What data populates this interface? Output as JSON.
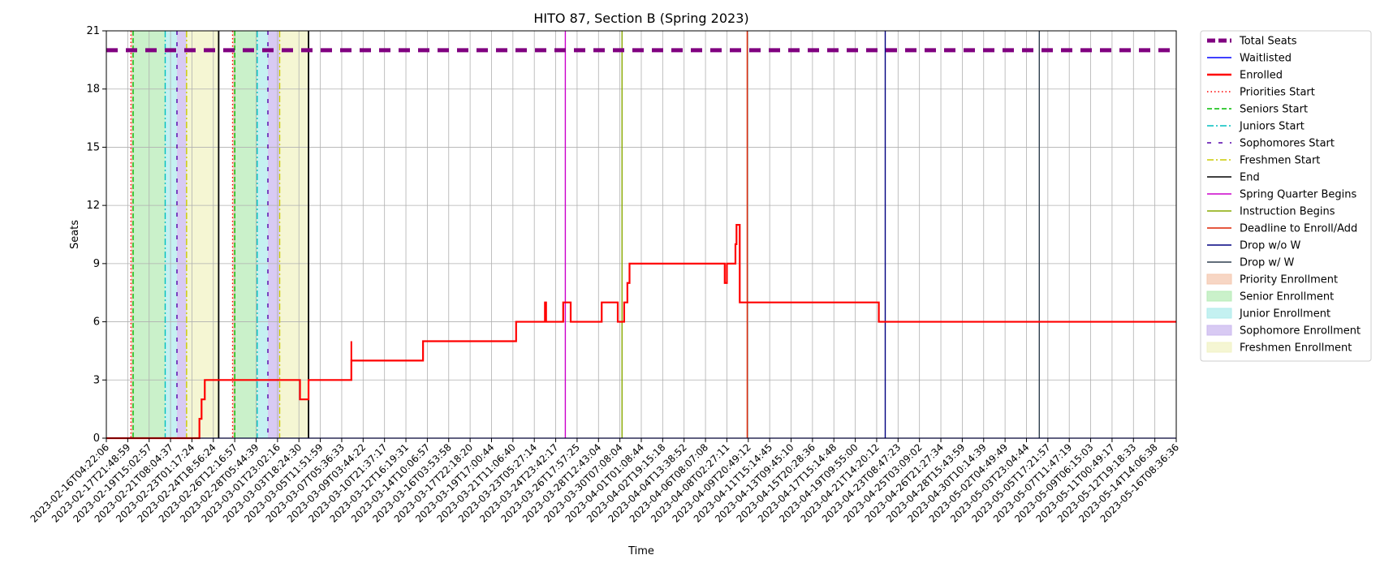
{
  "chart_data": {
    "type": "line",
    "title": "HITO 87, Section B (Spring 2023)",
    "xlabel": "Time",
    "ylabel": "Seats",
    "ylim": [
      0,
      21
    ],
    "yticks": [
      0,
      3,
      6,
      9,
      12,
      15,
      18,
      21
    ],
    "grid": true,
    "legend_position": "outside-right",
    "x_start": "2023-02-16T04:22:06",
    "x_end": "2023-05-16T08:36:36",
    "xtick_labels": [
      "2023-02-16T04:22:06",
      "2023-02-17T21:48:59",
      "2023-02-19T15:02:57",
      "2023-02-21T08:04:37",
      "2023-02-23T01:17:24",
      "2023-02-24T18:56:24",
      "2023-02-26T12:16:57",
      "2023-02-28T05:44:39",
      "2023-03-01T23:02:16",
      "2023-03-03T18:24:30",
      "2023-03-05T11:51:59",
      "2023-03-07T05:36:33",
      "2023-03-09T03:44:22",
      "2023-03-10T21:37:17",
      "2023-03-12T16:19:31",
      "2023-03-14T10:06:57",
      "2023-03-16T03:53:58",
      "2023-03-17T22:18:20",
      "2023-03-19T17:00:44",
      "2023-03-21T11:06:40",
      "2023-03-23T05:27:14",
      "2023-03-24T23:42:17",
      "2023-03-26T17:57:25",
      "2023-03-28T12:43:04",
      "2023-03-30T07:08:04",
      "2023-04-01T01:08:44",
      "2023-04-02T19:15:18",
      "2023-04-04T13:38:52",
      "2023-04-06T08:07:08",
      "2023-04-08T02:27:11",
      "2023-04-09T20:49:12",
      "2023-04-11T15:14:45",
      "2023-04-13T09:45:10",
      "2023-04-15T20:28:36",
      "2023-04-17T15:14:48",
      "2023-04-19T09:55:00",
      "2023-04-21T14:20:12",
      "2023-04-23T08:47:23",
      "2023-04-25T03:09:02",
      "2023-04-26T21:27:34",
      "2023-04-28T15:43:59",
      "2023-04-30T10:14:39",
      "2023-05-02T04:49:49",
      "2023-05-03T23:04:44",
      "2023-05-05T17:21:57",
      "2023-05-07T11:47:19",
      "2023-05-09T06:15:03",
      "2023-05-11T00:49:17",
      "2023-05-12T19:18:33",
      "2023-05-14T14:06:38",
      "2023-05-16T08:36:36"
    ],
    "series": [
      {
        "name": "Total Seats",
        "color": "#800080",
        "style": "thick-dashed",
        "points": [
          [
            0,
            20
          ],
          [
            50,
            20
          ]
        ]
      },
      {
        "name": "Waitlisted",
        "color": "#0000ff",
        "style": "solid",
        "points": [
          [
            0,
            0
          ],
          [
            50,
            0
          ]
        ]
      },
      {
        "name": "Enrolled",
        "color": "#ff0000",
        "style": "solid",
        "points": [
          [
            0,
            0
          ],
          [
            4.35,
            0
          ],
          [
            4.35,
            1
          ],
          [
            4.45,
            1
          ],
          [
            4.45,
            2
          ],
          [
            4.6,
            2
          ],
          [
            4.6,
            3
          ],
          [
            9.05,
            3
          ],
          [
            9.05,
            2
          ],
          [
            9.45,
            2
          ],
          [
            9.45,
            3
          ],
          [
            11.45,
            3
          ],
          [
            11.45,
            4
          ],
          [
            14.8,
            4
          ],
          [
            14.8,
            5
          ],
          [
            19.15,
            5
          ],
          [
            19.15,
            6
          ],
          [
            20.5,
            6
          ],
          [
            20.5,
            7
          ],
          [
            20.55,
            7
          ],
          [
            20.55,
            6
          ],
          [
            21.35,
            6
          ],
          [
            21.35,
            7
          ],
          [
            21.7,
            7
          ],
          [
            21.7,
            6
          ],
          [
            23.15,
            6
          ],
          [
            23.15,
            7
          ],
          [
            23.9,
            7
          ],
          [
            23.9,
            6
          ],
          [
            24.2,
            6
          ],
          [
            24.2,
            7
          ],
          [
            24.35,
            7
          ],
          [
            24.35,
            8
          ],
          [
            24.45,
            8
          ],
          [
            24.45,
            9
          ],
          [
            28.9,
            9
          ],
          [
            28.9,
            8
          ],
          [
            29.0,
            8
          ],
          [
            29.0,
            9
          ],
          [
            29.4,
            9
          ],
          [
            29.4,
            10
          ],
          [
            29.45,
            10
          ],
          [
            29.45,
            11
          ],
          [
            29.6,
            11
          ],
          [
            29.6,
            7
          ],
          [
            36.1,
            7
          ],
          [
            36.1,
            6
          ],
          [
            50,
            6
          ]
        ]
      },
      {
        "name": "Enrolled spikes",
        "color": "#ff0000",
        "style": "spike",
        "points": [
          [
            11.45,
            5
          ],
          [
            20.5,
            7
          ]
        ]
      }
    ],
    "events": [
      {
        "name": "Priorities Start",
        "color": "#ff0000",
        "style": "dotted",
        "x": [
          1.15,
          5.9
        ]
      },
      {
        "name": "Seniors Start",
        "color": "#00bb00",
        "style": "dashed",
        "x": [
          1.25,
          6.0
        ]
      },
      {
        "name": "Juniors Start",
        "color": "#00bfbf",
        "style": "dashdot",
        "x": [
          2.75,
          7.05
        ]
      },
      {
        "name": "Sophomores Start",
        "color": "#5500aa",
        "style": "loosedash",
        "x": [
          3.3,
          7.55
        ]
      },
      {
        "name": "Freshmen Start",
        "color": "#cccc00",
        "style": "dashdot",
        "x": [
          3.75,
          8.1
        ]
      },
      {
        "name": "End",
        "color": "#000000",
        "style": "solid",
        "x": [
          5.25,
          9.45
        ]
      },
      {
        "name": "Spring Quarter Begins",
        "color": "#cc00cc",
        "style": "solid",
        "x": [
          21.45
        ]
      },
      {
        "name": "Instruction Begins",
        "color": "#88aa00",
        "style": "solid",
        "x": [
          24.1
        ]
      },
      {
        "name": "Deadline to Enroll/Add",
        "color": "#dd2200",
        "style": "solid",
        "x": [
          29.95
        ]
      },
      {
        "name": "Drop w/o W",
        "color": "#000080",
        "style": "solid",
        "x": [
          36.4
        ]
      },
      {
        "name": "Drop w/ W",
        "color": "#2f3f4f",
        "style": "solid",
        "x": [
          43.6
        ]
      }
    ],
    "regions": [
      {
        "name": "Priority Enrollment",
        "color": "#f4c8b0",
        "spans": [
          [
            1.15,
            1.25
          ],
          [
            5.9,
            6.0
          ]
        ]
      },
      {
        "name": "Senior Enrollment",
        "color": "#b8ecb8",
        "spans": [
          [
            1.25,
            2.75
          ],
          [
            6.0,
            7.05
          ]
        ]
      },
      {
        "name": "Junior Enrollment",
        "color": "#b0ecec",
        "spans": [
          [
            2.75,
            3.3
          ],
          [
            7.05,
            7.55
          ]
        ]
      },
      {
        "name": "Sophomore Enrollment",
        "color": "#cbb8ef",
        "spans": [
          [
            3.3,
            3.75
          ],
          [
            7.55,
            8.1
          ]
        ]
      },
      {
        "name": "Freshmen Enrollment",
        "color": "#f1f3c4",
        "spans": [
          [
            3.75,
            5.25
          ],
          [
            8.1,
            9.45
          ]
        ]
      }
    ],
    "legend": [
      {
        "label": "Total Seats",
        "kind": "thick-dashed",
        "color": "#800080"
      },
      {
        "label": "Waitlisted",
        "kind": "solid",
        "color": "#0000ff"
      },
      {
        "label": "Enrolled",
        "kind": "solid-bold",
        "color": "#ff0000"
      },
      {
        "label": "Priorities Start",
        "kind": "dotted",
        "color": "#ff0000"
      },
      {
        "label": "Seniors Start",
        "kind": "dashed",
        "color": "#00bb00"
      },
      {
        "label": "Juniors Start",
        "kind": "dashdot",
        "color": "#00bfbf"
      },
      {
        "label": "Sophomores Start",
        "kind": "loosedash",
        "color": "#5500aa"
      },
      {
        "label": "Freshmen Start",
        "kind": "dashdot",
        "color": "#cccc00"
      },
      {
        "label": "End",
        "kind": "solid",
        "color": "#000000"
      },
      {
        "label": "Spring Quarter Begins",
        "kind": "solid",
        "color": "#cc00cc"
      },
      {
        "label": "Instruction Begins",
        "kind": "solid",
        "color": "#88aa00"
      },
      {
        "label": "Deadline to Enroll/Add",
        "kind": "solid",
        "color": "#dd2200"
      },
      {
        "label": "Drop w/o W",
        "kind": "solid",
        "color": "#000080"
      },
      {
        "label": "Drop w/ W",
        "kind": "solid",
        "color": "#2f3f4f"
      },
      {
        "label": "Priority Enrollment",
        "kind": "patch",
        "color": "#f4c8b0"
      },
      {
        "label": "Senior Enrollment",
        "kind": "patch",
        "color": "#b8ecb8"
      },
      {
        "label": "Junior Enrollment",
        "kind": "patch",
        "color": "#b0ecec"
      },
      {
        "label": "Sophomore Enrollment",
        "kind": "patch",
        "color": "#cbb8ef"
      },
      {
        "label": "Freshmen Enrollment",
        "kind": "patch",
        "color": "#f1f3c4"
      }
    ]
  }
}
